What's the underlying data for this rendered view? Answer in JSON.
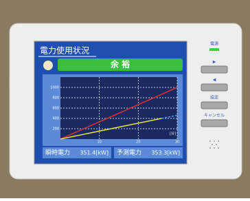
{
  "screen": {
    "title": "電力使用状況",
    "status": "余 裕",
    "readings": [
      {
        "label": "瞬時電力",
        "value": "351.4[kW]"
      },
      {
        "label": "予測電力",
        "value": "353.3[kW]"
      }
    ]
  },
  "buttons": {
    "power": "電源",
    "items": [
      "▶",
      "◀",
      "設定",
      "キャンセル"
    ]
  },
  "chart_data": {
    "type": "line",
    "x_unit": "[分]",
    "xlim": [
      0,
      30
    ],
    "xticks": [
      10,
      20,
      30
    ],
    "ylim": [
      0,
      1200
    ],
    "yticks": [
      200,
      400,
      600,
      800,
      1000
    ],
    "grid": true,
    "series": [
      {
        "color": "#e03030",
        "x": [
          0,
          30
        ],
        "values": [
          0,
          1000
        ]
      },
      {
        "color": "#e8e040",
        "x": [
          0,
          26
        ],
        "values": [
          0,
          400
        ]
      },
      {
        "color": "#40a0ff",
        "dashed": true,
        "x": [
          26,
          30
        ],
        "values": [
          400,
          460
        ]
      }
    ]
  }
}
